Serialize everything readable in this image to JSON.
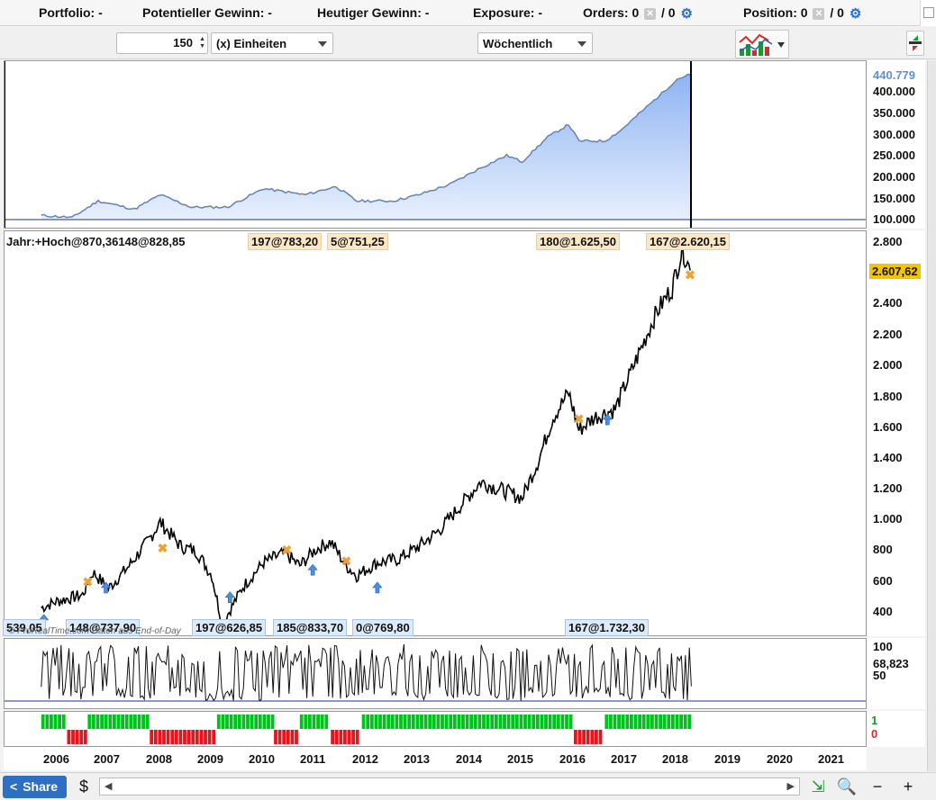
{
  "header": {
    "portfolio": "Portfolio: -",
    "potential_gain": "Potentieller Gewinn: -",
    "daily_gain": "Heutiger Gewinn: -",
    "exposure": "Exposure: -",
    "orders_label": "Orders: 0",
    "orders_sep": "/ 0",
    "position_label": "Position: 0",
    "position_sep": "/ 0"
  },
  "toolbar": {
    "quantity": "150",
    "unit": "(x) Einheiten",
    "timeframe": "Wöchentlich"
  },
  "equity_panel": {
    "last_value": "440.779",
    "y_ticks": [
      "400.000",
      "350.000",
      "300.000",
      "250.000",
      "200.000",
      "150.000",
      "100.000"
    ]
  },
  "price_panel": {
    "last_value": "2.607,62",
    "y_ticks": [
      "2.800",
      "2.600",
      "2.400",
      "2.200",
      "2.000",
      "1.800",
      "1.600",
      "1.400",
      "1.200",
      "1.000",
      "800",
      "600",
      "400"
    ],
    "header_text": "Jahr:+Hoch@870,36148@828,85",
    "trade_labels_top": [
      "197@783,20",
      "5@751,25",
      "180@1.625,50",
      "167@2.620,15"
    ],
    "trade_labels_bottom": [
      "539,05",
      "148@737,90",
      "197@626,85",
      "185@833,70",
      "0@769,80",
      "167@1.732,30"
    ],
    "watermark": "© ProRealTime.com Daten aus End-of-Day"
  },
  "indicator_panel": {
    "last_value": "68,823",
    "y_ticks": [
      "100",
      "50"
    ]
  },
  "signal_panel": {
    "y_ticks": [
      "1",
      "0"
    ],
    "color_on": "#00c21c",
    "color_off": "#e8141c"
  },
  "x_axis": {
    "years": [
      "2006",
      "2007",
      "2008",
      "2009",
      "2010",
      "2011",
      "2012",
      "2013",
      "2014",
      "2015",
      "2016",
      "2017",
      "2018",
      "2019",
      "2020",
      "2021"
    ]
  },
  "chart_data": {
    "type": "line",
    "series": [
      {
        "x": [
          2005.7,
          2006.0,
          2006.5,
          2006.7,
          2007.0,
          2007.4,
          2007.8,
          2008.0,
          2008.4,
          2008.7,
          2009.0,
          2009.2,
          2009.6,
          2010.0,
          2010.4,
          2010.7,
          2011.0,
          2011.3,
          2011.6,
          2011.8,
          2012.2,
          2012.6,
          2013.0,
          2013.4,
          2013.8,
          2014.2,
          2014.6,
          2015.0,
          2015.3,
          2015.6,
          2015.9,
          2016.1,
          2016.4,
          2016.8,
          2017.2,
          2017.6,
          2017.9,
          2018.1,
          2018.25
        ],
        "values": [
          520,
          560,
          600,
          740,
          640,
          780,
          950,
          1050,
          900,
          870,
          720,
          420,
          650,
          800,
          860,
          780,
          880,
          930,
          780,
          720,
          800,
          820,
          900,
          1000,
          1150,
          1300,
          1250,
          1200,
          1420,
          1700,
          1850,
          1620,
          1700,
          1750,
          2050,
          2350,
          2500,
          2740,
          2607.62
        ]
      },
      {
        "x": [
          2005.7,
          2006.3,
          2006.8,
          2007.5,
          2008.0,
          2008.6,
          2009.3,
          2010.0,
          2010.8,
          2011.4,
          2011.8,
          2012.5,
          2013.0,
          2013.6,
          2014.2,
          2014.7,
          2015.0,
          2015.5,
          2015.9,
          2016.1,
          2016.6,
          2016.9,
          2017.3,
          2017.7,
          2018.0,
          2018.25
        ],
        "values": [
          100000,
          95000,
          135000,
          115000,
          150000,
          120000,
          120000,
          165000,
          150000,
          170000,
          135000,
          135000,
          150000,
          175000,
          215000,
          245000,
          230000,
          290000,
          320000,
          280000,
          280000,
          305000,
          350000,
          395000,
          430000,
          440779
        ]
      }
    ],
    "x_ticks": [
      "2006",
      "2007",
      "2008",
      "2009",
      "2010",
      "2011",
      "2012",
      "2013",
      "2014",
      "2015",
      "2016",
      "2017",
      "2018",
      "2019",
      "2020",
      "2021"
    ],
    "ylim_price": [
      350,
      2850
    ],
    "ylim_equity": [
      90000,
      460000
    ]
  }
}
